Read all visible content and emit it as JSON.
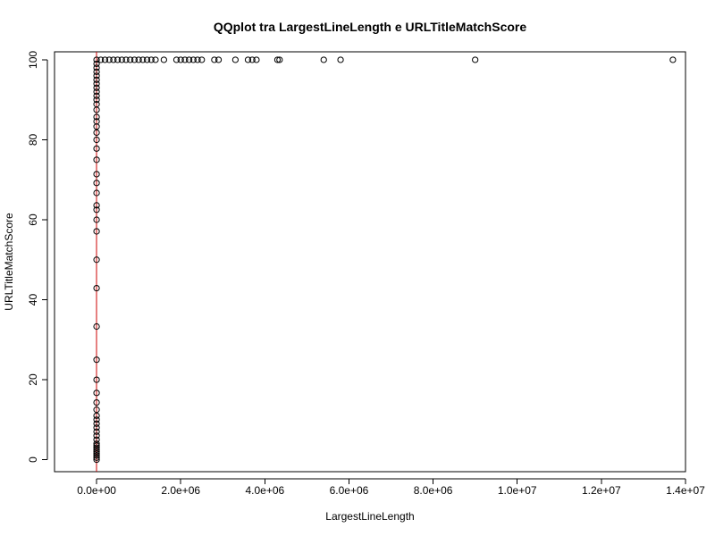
{
  "chart_data": {
    "type": "scatter",
    "title": "QQplot tra LargestLineLength e URLTitleMatchScore",
    "xlabel": "LargestLineLength",
    "ylabel": "URLTitleMatchScore",
    "xlim": [
      -1000000,
      14000000
    ],
    "ylim": [
      -3,
      102
    ],
    "x_ticks": [
      0,
      2000000,
      4000000,
      6000000,
      8000000,
      10000000,
      12000000,
      14000000
    ],
    "x_tick_labels": [
      "0.0e+00",
      "2.0e+06",
      "4.0e+06",
      "6.0e+06",
      "8.0e+06",
      "1.0e+07",
      "1.2e+07",
      "1.4e+07"
    ],
    "y_ticks": [
      0,
      20,
      40,
      60,
      80,
      100
    ],
    "y_tick_labels": [
      "0",
      "20",
      "40",
      "60",
      "80",
      "100"
    ],
    "reference_line": {
      "type": "vertical",
      "x": 0,
      "color": "#cc0000"
    },
    "point_color": "#000000",
    "grid": false,
    "series": [
      {
        "points": [
          [
            0,
            0
          ],
          [
            0,
            0.5
          ],
          [
            0,
            1
          ],
          [
            0,
            1.5
          ],
          [
            0,
            2
          ],
          [
            0,
            2.5
          ],
          [
            0,
            3
          ],
          [
            0,
            3.5
          ],
          [
            0,
            4
          ],
          [
            0,
            5
          ],
          [
            0,
            6
          ],
          [
            0,
            7
          ],
          [
            0,
            8
          ],
          [
            0,
            9
          ],
          [
            0,
            10
          ],
          [
            0,
            11
          ],
          [
            0,
            12.5
          ],
          [
            0,
            14.3
          ],
          [
            0,
            16.7
          ],
          [
            0,
            20
          ],
          [
            0,
            25
          ],
          [
            0,
            33.3
          ],
          [
            0,
            42.9
          ],
          [
            0,
            50
          ],
          [
            0,
            57.1
          ],
          [
            0,
            60
          ],
          [
            0,
            62.5
          ],
          [
            0,
            63.6
          ],
          [
            0,
            66.7
          ],
          [
            0,
            69.2
          ],
          [
            0,
            71.4
          ],
          [
            0,
            75
          ],
          [
            0,
            77.8
          ],
          [
            0,
            80
          ],
          [
            0,
            81.8
          ],
          [
            0,
            83.3
          ],
          [
            0,
            84.6
          ],
          [
            0,
            85.7
          ],
          [
            0,
            87.5
          ],
          [
            0,
            88.9
          ],
          [
            0,
            90
          ],
          [
            0,
            91
          ],
          [
            0,
            92
          ],
          [
            0,
            93
          ],
          [
            0,
            94
          ],
          [
            0,
            95
          ],
          [
            0,
            96
          ],
          [
            0,
            97
          ],
          [
            0,
            98
          ],
          [
            0,
            99
          ],
          [
            0,
            100
          ],
          [
            100000,
            100
          ],
          [
            200000,
            100
          ],
          [
            300000,
            100
          ],
          [
            400000,
            100
          ],
          [
            500000,
            100
          ],
          [
            600000,
            100
          ],
          [
            700000,
            100
          ],
          [
            800000,
            100
          ],
          [
            900000,
            100
          ],
          [
            1000000,
            100
          ],
          [
            1100000,
            100
          ],
          [
            1200000,
            100
          ],
          [
            1300000,
            100
          ],
          [
            1400000,
            100
          ],
          [
            1600000,
            100
          ],
          [
            1900000,
            100
          ],
          [
            2000000,
            100
          ],
          [
            2100000,
            100
          ],
          [
            2200000,
            100
          ],
          [
            2300000,
            100
          ],
          [
            2400000,
            100
          ],
          [
            2500000,
            100
          ],
          [
            2800000,
            100
          ],
          [
            2900000,
            100
          ],
          [
            3300000,
            100
          ],
          [
            3600000,
            100
          ],
          [
            3700000,
            100
          ],
          [
            3800000,
            100
          ],
          [
            4300000,
            100
          ],
          [
            4350000,
            100
          ],
          [
            5400000,
            100
          ],
          [
            5800000,
            100
          ],
          [
            9000000,
            100
          ],
          [
            13700000,
            100
          ]
        ]
      }
    ]
  }
}
